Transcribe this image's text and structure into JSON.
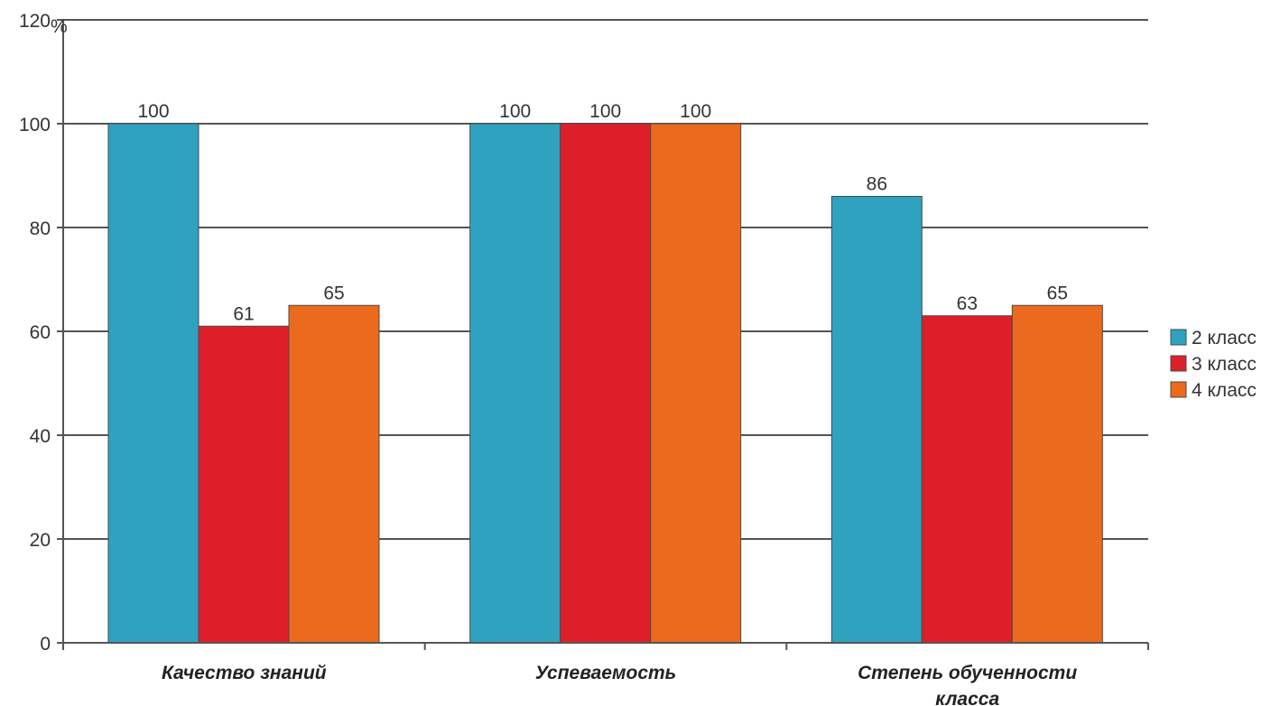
{
  "chart_data": {
    "type": "bar",
    "categories": [
      [
        "Качество знаний"
      ],
      [
        "Успеваемость"
      ],
      [
        "Степень обученности",
        "класса"
      ]
    ],
    "series": [
      {
        "name": "2 класс",
        "color": "#2fa2c0",
        "values": [
          100,
          100,
          86
        ]
      },
      {
        "name": "3 класс",
        "color": "#dd1f2a",
        "values": [
          61,
          100,
          63
        ]
      },
      {
        "name": "4 класс",
        "color": "#ec6a1d",
        "values": [
          65,
          100,
          65
        ]
      }
    ],
    "data_labels": [
      [
        "100",
        "61",
        "65"
      ],
      [
        "100",
        "100",
        "100"
      ],
      [
        "86",
        "63",
        "65"
      ]
    ],
    "ylim": [
      0,
      120
    ],
    "yticks": [
      0,
      20,
      40,
      60,
      80,
      100,
      120
    ],
    "y_unit_label": "%",
    "grid": true,
    "legend_position": "right"
  }
}
